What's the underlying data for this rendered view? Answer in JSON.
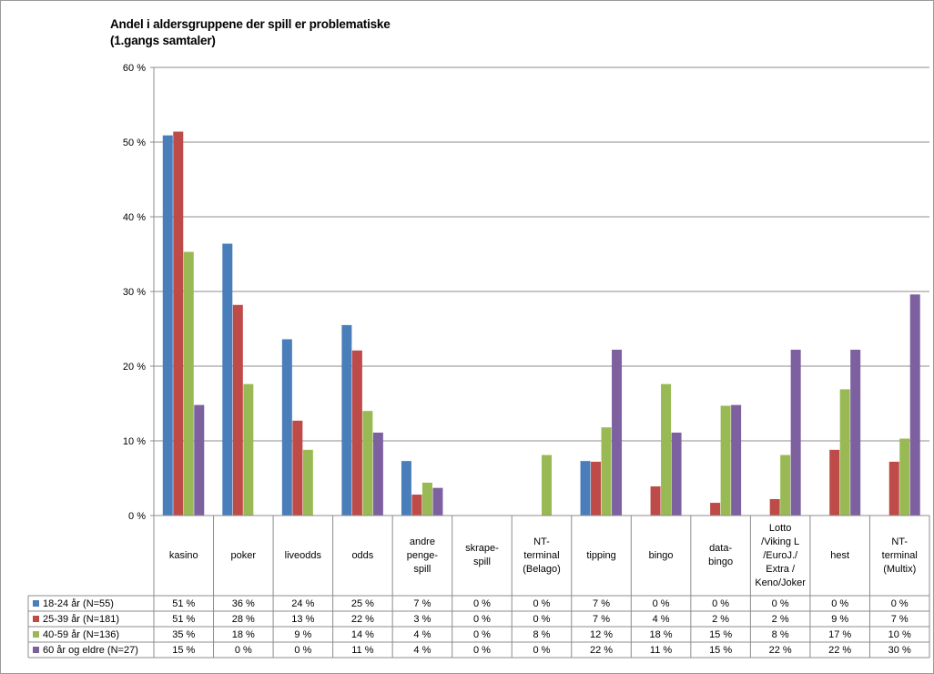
{
  "chart_data": {
    "type": "bar",
    "title_line1": "Andel i aldersgruppene der spill er problematiske",
    "title_line2": "(1.gangs samtaler)",
    "ylim": [
      0,
      60
    ],
    "y_ticks": [
      "0 %",
      "10 %",
      "20 %",
      "30 %",
      "40 %",
      "50 %",
      "60 %"
    ],
    "y_tick_values": [
      0,
      10,
      20,
      30,
      40,
      50,
      60
    ],
    "grid": true,
    "legend_placement": "data-table-left",
    "categories": [
      "kasino",
      "poker",
      "liveodds",
      "odds",
      "andre\npenge-\nspill",
      "skrape-\nspill",
      "NT-\nterminal\n(Belago)",
      "tipping",
      "bingo",
      "data-\nbingo",
      "Lotto\n/Viking L\n/EuroJ./\nExtra /\nKeno/Joker",
      "hest",
      "NT-\nterminal\n(Multix)"
    ],
    "series": [
      {
        "name": "18-24 år (N=55)",
        "color": "#4a7ebb",
        "values": [
          50.9,
          36.4,
          23.6,
          25.5,
          7.3,
          0,
          0,
          7.3,
          0,
          0,
          0,
          0,
          0
        ],
        "labels": [
          "51 %",
          "36 %",
          "24 %",
          "25 %",
          "7 %",
          "0 %",
          "0 %",
          "7 %",
          "0 %",
          "0 %",
          "0 %",
          "0 %",
          "0 %"
        ]
      },
      {
        "name": "25-39 år (N=181)",
        "color": "#be4b48",
        "values": [
          51.4,
          28.2,
          12.7,
          22.1,
          2.8,
          0,
          0,
          7.2,
          3.9,
          1.7,
          2.2,
          8.8,
          7.2
        ],
        "labels": [
          "51 %",
          "28 %",
          "13 %",
          "22 %",
          "3 %",
          "0 %",
          "0 %",
          "7 %",
          "4 %",
          "2 %",
          "2 %",
          "9 %",
          "7 %"
        ]
      },
      {
        "name": "40-59 år (N=136)",
        "color": "#98b954",
        "values": [
          35.3,
          17.6,
          8.8,
          14.0,
          4.4,
          0,
          8.1,
          11.8,
          17.6,
          14.7,
          8.1,
          16.9,
          10.3
        ],
        "labels": [
          "35 %",
          "18 %",
          "9 %",
          "14 %",
          "4 %",
          "0 %",
          "8 %",
          "12 %",
          "18 %",
          "15 %",
          "8 %",
          "17 %",
          "10 %"
        ]
      },
      {
        "name": "60 år og eldre (N=27)",
        "color": "#7d60a0",
        "values": [
          14.8,
          0,
          0,
          11.1,
          3.7,
          0,
          0,
          22.2,
          11.1,
          14.8,
          22.2,
          22.2,
          29.6
        ],
        "labels": [
          "15 %",
          "0 %",
          "0 %",
          "11 %",
          "4 %",
          "0 %",
          "0 %",
          "22 %",
          "11 %",
          "15 %",
          "22 %",
          "22 %",
          "30 %"
        ]
      }
    ]
  }
}
